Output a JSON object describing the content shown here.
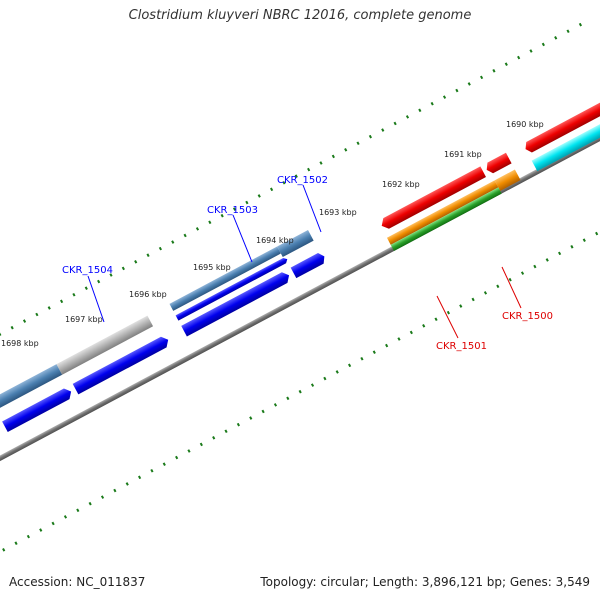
{
  "title": "Clostridium kluyveri NBRC 12016, complete genome",
  "footer": {
    "accession": "Accession: NC_011837",
    "summary": "Topology: circular; Length: 3,896,121 bp; Genes: 3,549"
  },
  "scale": {
    "labels": [
      "1690 kbp",
      "1691 kbp",
      "1692 kbp",
      "1693 kbp",
      "1694 kbp",
      "1695 kbp",
      "1696 kbp",
      "1697 kbp",
      "1698 kbp"
    ]
  },
  "genes": [
    {
      "name": "CKR_1504",
      "color": "#0000ff"
    },
    {
      "name": "CKR_1503",
      "color": "#0000ff"
    },
    {
      "name": "CKR_1502",
      "color": "#0000ff"
    },
    {
      "name": "CKR_1501",
      "color": "#dd0000"
    },
    {
      "name": "CKR_1500",
      "color": "#dd0000"
    }
  ],
  "colors": {
    "backbone": "#777777",
    "tick": "#1a7a1a",
    "cds_forward": "#0000ee",
    "cds_reverse": "#ee0000",
    "feature_steelblue": "#4a7fb0",
    "feature_orange": "#f08c00",
    "feature_green": "#2aa02a",
    "feature_cyan": "#00e5f0",
    "feature_gray": "#b0b0b0"
  }
}
